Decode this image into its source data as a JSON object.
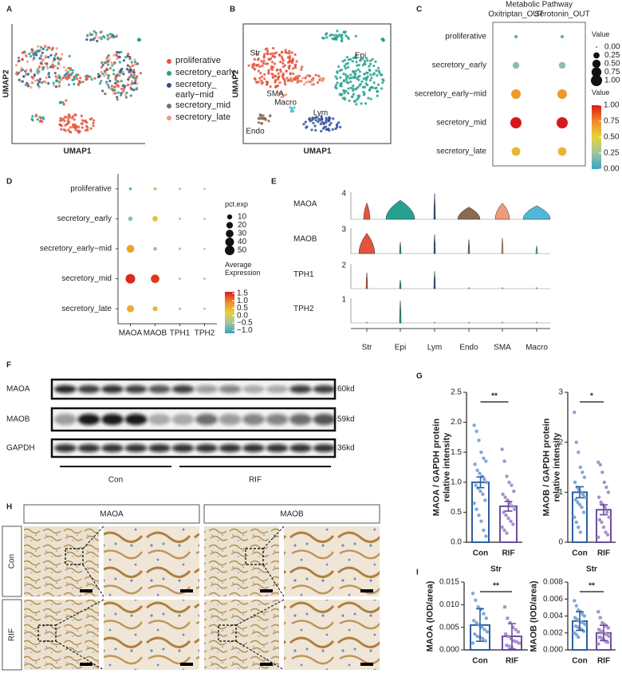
{
  "panel_labels": [
    "A",
    "B",
    "C",
    "D",
    "E",
    "F",
    "G",
    "H",
    "I"
  ],
  "umap_a": {
    "xlabel": "UMAP1",
    "ylabel": "UMAP2",
    "legend": [
      {
        "name": "proliferative",
        "color": "#e4533d"
      },
      {
        "name": "secretory_early",
        "color": "#26a18f"
      },
      {
        "name": "secretory_\nearly−mid",
        "color": "#35508f"
      },
      {
        "name": "secretory_mid",
        "color": "#7b6e62"
      },
      {
        "name": "secretory_late",
        "color": "#f09a7c"
      }
    ]
  },
  "umap_b": {
    "xlabel": "UMAP1",
    "ylabel": "UMAP2",
    "clusters": [
      {
        "name": "Str",
        "color": "#e4533d"
      },
      {
        "name": "Epi",
        "color": "#26a18f"
      },
      {
        "name": "SMA",
        "color": "#f09a7c"
      },
      {
        "name": "Endo",
        "color": "#8b6a4f"
      },
      {
        "name": "Macro",
        "color": "#4fb8d8"
      },
      {
        "name": "Lym",
        "color": "#2f4f98"
      }
    ]
  },
  "violin": {
    "genes": [
      "MAOA",
      "MAOB",
      "TPH1",
      "TPH2"
    ],
    "ymax": [
      4,
      3,
      2,
      1
    ],
    "cell_types": [
      "Str",
      "Epi",
      "Lym",
      "Endo",
      "SMA",
      "Macro"
    ],
    "colors": [
      "#e4533d",
      "#26a18f",
      "#2f4f98",
      "#8b6a4f",
      "#f09a7c",
      "#4fb8d8"
    ]
  },
  "blot": {
    "rows": [
      {
        "name": "MAOA",
        "size": "60kd"
      },
      {
        "name": "MAOB",
        "size": "59kd"
      },
      {
        "name": "GAPDH",
        "size": "36kd"
      }
    ],
    "groups": [
      "Con",
      "RIF"
    ]
  },
  "ihc": {
    "columns": [
      "MAOA",
      "MAOB"
    ],
    "rows": [
      "Con",
      "RIF"
    ]
  },
  "chart_data": [
    {
      "type": "dot",
      "xlabel": "Metabolic Pathway",
      "categories": [
        "proliferative",
        "secretory_early",
        "secretory_early−mid",
        "secretory_mid",
        "secretory_late"
      ],
      "series": [
        {
          "name": "Oxitriptan_OUT",
          "values": [
            0.05,
            0.3,
            0.7,
            1,
            0.55
          ],
          "color_values": [
            0.1,
            0.2,
            0.7,
            1,
            0.6
          ]
        },
        {
          "name": "Serotonin_OUT",
          "values": [
            0.05,
            0.3,
            0.7,
            1,
            0.55
          ],
          "color_values": [
            0.1,
            0.2,
            0.7,
            1,
            0.6
          ]
        }
      ],
      "size_title": "Value",
      "size_lim": [
        0,
        1
      ],
      "size_ticks": [
        {
          "value": 0,
          "label": "0.00"
        },
        0.25,
        {
          "value": 0.5,
          "label": "0.50"
        },
        0.75,
        {
          "value": 1,
          "label": "1.00"
        }
      ],
      "color_title": "Value",
      "clim": [
        0,
        1
      ],
      "cticks": [
        {
          "value": 1,
          "label": "1.00"
        },
        0.75,
        {
          "value": 0.5,
          "label": "0.50"
        },
        0.25,
        {
          "value": 0,
          "label": "0.00"
        }
      ],
      "colormap": [
        "#3aa1c8",
        "#9ec5a0",
        "#e8d23a",
        "#f08a2a",
        "#d7191c"
      ],
      "column_labels": "top",
      "frame": true
    },
    {
      "type": "dot",
      "categories": [
        "proliferative",
        "secretory_early",
        "secretory_early−mid",
        "secretory_mid",
        "secretory_late"
      ],
      "series": [
        {
          "name": "MAOA",
          "values": [
            2,
            8,
            30,
            50,
            25
          ],
          "color_values": [
            -0.9,
            -0.6,
            0.7,
            1.5,
            0.6
          ]
        },
        {
          "name": "MAOB",
          "values": [
            3,
            12,
            4,
            38,
            10
          ],
          "color_values": [
            -0.3,
            0.4,
            -0.6,
            1.4,
            0.5
          ]
        },
        {
          "name": "TPH1",
          "values": [
            1,
            1,
            1,
            1,
            1
          ],
          "color_values": [
            -0.4,
            -0.4,
            -0.4,
            -0.4,
            -0.4
          ]
        },
        {
          "name": "TPH2",
          "values": [
            0.5,
            0.5,
            0.5,
            0.5,
            0.5
          ],
          "color_values": [
            -0.4,
            -0.4,
            -0.4,
            -0.4,
            -0.4
          ]
        }
      ],
      "size_title": "pct.exp",
      "size_lim": [
        0,
        50
      ],
      "size_ticks": [
        10,
        20,
        30,
        40,
        50
      ],
      "color_title": "Average\nExpression",
      "clim": [
        -1.2,
        1.6
      ],
      "cticks": [
        1.5,
        {
          "value": 1,
          "label": "1.0"
        },
        0.5,
        {
          "value": 0,
          "label": "0.0"
        },
        {
          "value": -0.5,
          "label": "−0.5"
        },
        {
          "value": -1,
          "label": "−1.0"
        }
      ],
      "colormap": [
        "#3aa1c8",
        "#9ec5a0",
        "#e8d23a",
        "#f08a2a",
        "#d7191c"
      ],
      "column_labels": "bottom",
      "frame": false
    },
    {
      "type": "bar",
      "ylabel": "MAOA / GAPDH protein\nrelative intensity",
      "categories": [
        "Con",
        "RIF"
      ],
      "colors": [
        "#2f5f9e",
        "#6b4e9b"
      ],
      "point_colors": [
        "#7fa8d8",
        "#a890cc"
      ],
      "markers": [
        "circle",
        "circle"
      ],
      "values": [
        1.0,
        0.6
      ],
      "errors": [
        0.09,
        0.08
      ],
      "points": [
        [
          1.95,
          1.85,
          1.7,
          1.5,
          1.4,
          1.35,
          1.3,
          1.2,
          1.15,
          1.1,
          1.05,
          1.0,
          0.95,
          0.9,
          0.85,
          0.8,
          0.7,
          0.65,
          0.55,
          0.45,
          0.35,
          0.2,
          0.1
        ],
        [
          1.55,
          1.35,
          1.1,
          1.0,
          0.95,
          0.85,
          0.8,
          0.75,
          0.7,
          0.65,
          0.6,
          0.55,
          0.5,
          0.45,
          0.4,
          0.35,
          0.3,
          0.25,
          0.2,
          0.15
        ]
      ],
      "ylim": [
        0,
        2.5
      ],
      "yticks": [
        {
          "value": 0,
          "label": "0.0"
        },
        0.5,
        {
          "value": 1,
          "label": "1.0"
        },
        1.5,
        {
          "value": 2,
          "label": "2.0"
        },
        2.5
      ],
      "annotation": "**"
    },
    {
      "type": "bar",
      "ylabel": "MAOB / GAPDH protein\nrelative intensity",
      "categories": [
        "Con",
        "RIF"
      ],
      "colors": [
        "#2f5f9e",
        "#6b4e9b"
      ],
      "point_colors": [
        "#7fa8d8",
        "#a890cc"
      ],
      "markers": [
        "circle",
        "circle"
      ],
      "values": [
        1.0,
        0.65
      ],
      "errors": [
        0.11,
        0.1
      ],
      "points": [
        [
          2.6,
          2.0,
          1.8,
          1.5,
          1.4,
          1.3,
          1.2,
          1.1,
          1.05,
          1.0,
          0.95,
          0.9,
          0.85,
          0.8,
          0.75,
          0.7,
          0.6,
          0.5,
          0.4,
          0.3,
          0.2
        ],
        [
          1.6,
          1.55,
          1.4,
          1.2,
          1.1,
          1.0,
          0.9,
          0.8,
          0.75,
          0.7,
          0.6,
          0.5,
          0.45,
          0.4,
          0.3,
          0.2,
          0.15,
          0.1
        ]
      ],
      "ylim": [
        0,
        3
      ],
      "yticks": [
        0,
        1,
        2,
        3
      ],
      "annotation": "*"
    },
    {
      "type": "bar",
      "title": "Str",
      "ylabel": "MAOA (IOD/area)",
      "categories": [
        "Con",
        "RIF"
      ],
      "colors": [
        "#2f5f9e",
        "#6b4e9b"
      ],
      "point_colors": [
        "#7fa8d8",
        "#a890cc"
      ],
      "markers": [
        "circle",
        "square"
      ],
      "values": [
        0.0055,
        0.003
      ],
      "errors": [
        0.0036,
        0.0028
      ],
      "points": [
        [
          0.0125,
          0.011,
          0.0095,
          0.009,
          0.008,
          0.007,
          0.0065,
          0.006,
          0.0055,
          0.005,
          0.0045,
          0.004,
          0.0035,
          0.003,
          0.0028,
          0.0025,
          0.002,
          0.0015
        ],
        [
          0.0095,
          0.007,
          0.006,
          0.005,
          0.0045,
          0.004,
          0.0035,
          0.003,
          0.0025,
          0.002,
          0.0018,
          0.0015,
          0.001,
          0.0008,
          0.0005
        ]
      ],
      "ylim": [
        0,
        0.015
      ],
      "yticks": [
        {
          "value": 0,
          "label": "0.000"
        },
        {
          "value": 0.005,
          "label": "0.005"
        },
        {
          "value": 0.01,
          "label": "0.010"
        },
        {
          "value": 0.015,
          "label": "0.015"
        }
      ],
      "annotation": "**"
    },
    {
      "type": "bar",
      "title": "Str",
      "ylabel": "MAOB (IOD/area)",
      "categories": [
        "Con",
        "RIF"
      ],
      "colors": [
        "#2f5f9e",
        "#6b4e9b"
      ],
      "point_colors": [
        "#7fa8d8",
        "#a890cc"
      ],
      "markers": [
        "circle",
        "square"
      ],
      "values": [
        0.0034,
        0.002
      ],
      "errors": [
        0.0011,
        0.0009
      ],
      "points": [
        [
          0.0058,
          0.0052,
          0.0047,
          0.0045,
          0.0042,
          0.004,
          0.0038,
          0.0036,
          0.0034,
          0.0033,
          0.0032,
          0.003,
          0.0028,
          0.0027,
          0.0025,
          0.0024,
          0.0022,
          0.002,
          0.0018,
          0.0015
        ],
        [
          0.0045,
          0.0038,
          0.0032,
          0.003,
          0.0028,
          0.0026,
          0.0024,
          0.0022,
          0.002,
          0.0019,
          0.0018,
          0.0016,
          0.0015,
          0.0014,
          0.0012,
          0.001,
          0.0009,
          0.0007
        ]
      ],
      "ylim": [
        0,
        0.008
      ],
      "yticks": [
        {
          "value": 0,
          "label": "0.000"
        },
        {
          "value": 0.002,
          "label": "0.002"
        },
        {
          "value": 0.004,
          "label": "0.004"
        },
        {
          "value": 0.006,
          "label": "0.006"
        },
        {
          "value": 0.008,
          "label": "0.008"
        }
      ],
      "annotation": "**"
    }
  ]
}
